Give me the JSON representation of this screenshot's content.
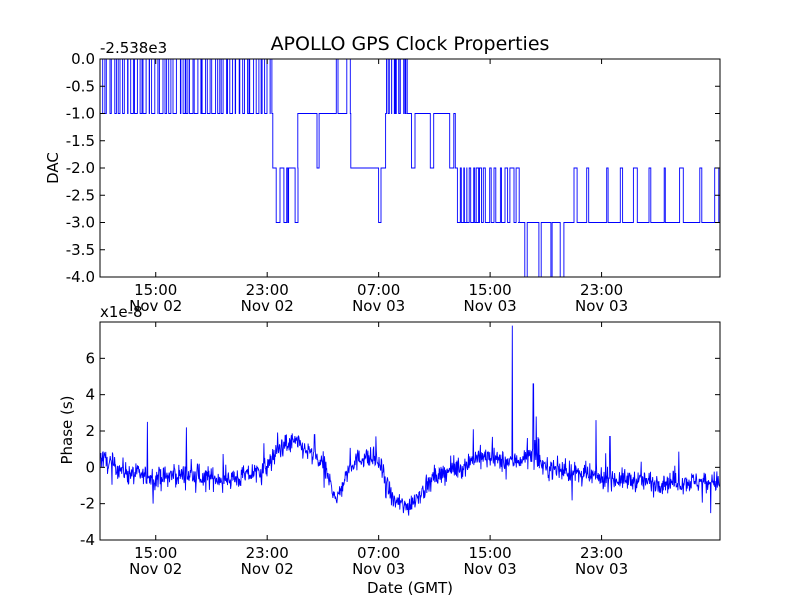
{
  "chart_data": [
    {
      "type": "line",
      "title": "APOLLO GPS Clock Properties",
      "offset_label": "-2.538e3",
      "ylabel": "DAC",
      "xlabel": "",
      "ylim": [
        -4.0,
        0.0
      ],
      "xlim": [
        0,
        44.5
      ],
      "yticks": [
        "0.0",
        "-0.5",
        "-1.0",
        "-1.5",
        "-2.0",
        "-2.5",
        "-3.0",
        "-3.5",
        "-4.0"
      ],
      "xticks": [
        {
          "x": 4,
          "time": "15:00",
          "date": "Nov 02"
        },
        {
          "x": 12,
          "time": "23:00",
          "date": "Nov 02"
        },
        {
          "x": 20,
          "time": "07:00",
          "date": "Nov 03"
        },
        {
          "x": 28,
          "time": "15:00",
          "date": "Nov 03"
        },
        {
          "x": 36,
          "time": "23:00",
          "date": "Nov 03"
        }
      ],
      "segments": [
        {
          "x0": 0,
          "x1": 12.4,
          "level": -1.0,
          "spike_to": 0.0,
          "spikes": 40
        },
        {
          "x0": 12.4,
          "x1": 14.2,
          "level": -2.0,
          "spike_to": -3.0,
          "spikes": 4
        },
        {
          "x0": 14.2,
          "x1": 16.4,
          "level": -1.0,
          "spike_to": -2.0,
          "spikes": 1
        },
        {
          "x0": 16.4,
          "x1": 18.0,
          "level": -1.0,
          "spike_to": 0.0,
          "spikes": 2
        },
        {
          "x0": 18.0,
          "x1": 20.5,
          "level": -2.0,
          "spike_to": -3.0,
          "spikes": 1
        },
        {
          "x0": 20.5,
          "x1": 22.0,
          "level": -1.0,
          "spike_to": 0.0,
          "spikes": 9
        },
        {
          "x0": 22.0,
          "x1": 25.5,
          "level": -1.0,
          "spike_to": -2.0,
          "spikes": 3
        },
        {
          "x0": 25.5,
          "x1": 27.0,
          "level": -2.0,
          "spike_to": -3.0,
          "spikes": 6
        },
        {
          "x0": 27.0,
          "x1": 30.0,
          "level": -3.0,
          "spike_to": -2.0,
          "spikes": 8
        },
        {
          "x0": 30.0,
          "x1": 33.5,
          "level": -3.0,
          "spike_to": -4.0,
          "spikes": 4
        },
        {
          "x0": 33.5,
          "x1": 44.5,
          "level": -3.0,
          "spike_to": -2.0,
          "spikes": 10
        }
      ]
    },
    {
      "type": "line",
      "title": "",
      "offset_label": "x1e-8",
      "ylabel": "Phase (s)",
      "xlabel": "Date (GMT)",
      "ylim": [
        -4,
        8
      ],
      "xlim": [
        0,
        44.5
      ],
      "yticks": [
        "6",
        "4",
        "2",
        "0",
        "-2",
        "-4"
      ],
      "xticks": [
        {
          "x": 4,
          "time": "15:00",
          "date": "Nov 02"
        },
        {
          "x": 12,
          "time": "23:00",
          "date": "Nov 02"
        },
        {
          "x": 20,
          "time": "07:00",
          "date": "Nov 03"
        },
        {
          "x": 28,
          "time": "15:00",
          "date": "Nov 03"
        },
        {
          "x": 36,
          "time": "23:00",
          "date": "Nov 03"
        }
      ],
      "baseline": [
        [
          0,
          0.5
        ],
        [
          2,
          -0.3
        ],
        [
          4,
          -0.6
        ],
        [
          6,
          -0.4
        ],
        [
          8,
          -0.6
        ],
        [
          10,
          -0.6
        ],
        [
          12,
          0.0
        ],
        [
          13,
          1.2
        ],
        [
          14,
          1.4
        ],
        [
          15,
          0.8
        ],
        [
          16,
          0.2
        ],
        [
          17,
          -1.8
        ],
        [
          18,
          0.2
        ],
        [
          19,
          0.6
        ],
        [
          20,
          0.3
        ],
        [
          21,
          -1.8
        ],
        [
          22,
          -2.2
        ],
        [
          23,
          -1.4
        ],
        [
          24,
          -0.6
        ],
        [
          25,
          -0.2
        ],
        [
          26,
          0.0
        ],
        [
          27,
          0.6
        ],
        [
          28,
          0.5
        ],
        [
          29,
          0.3
        ],
        [
          30,
          0.4
        ],
        [
          31,
          0.7
        ],
        [
          32,
          0.0
        ],
        [
          34,
          -0.3
        ],
        [
          36,
          -0.6
        ],
        [
          38,
          -0.7
        ],
        [
          40,
          -0.8
        ],
        [
          44.5,
          -0.8
        ]
      ],
      "noise_amplitude": 0.6,
      "peaks": [
        [
          3.4,
          2.5
        ],
        [
          6.2,
          2.2
        ],
        [
          15.4,
          1.8
        ],
        [
          19.8,
          1.7
        ],
        [
          26.8,
          2.1
        ],
        [
          29.6,
          7.8
        ],
        [
          31.1,
          4.6
        ],
        [
          31.3,
          2.8
        ],
        [
          35.6,
          2.6
        ],
        [
          36.6,
          1.7
        ]
      ]
    }
  ]
}
